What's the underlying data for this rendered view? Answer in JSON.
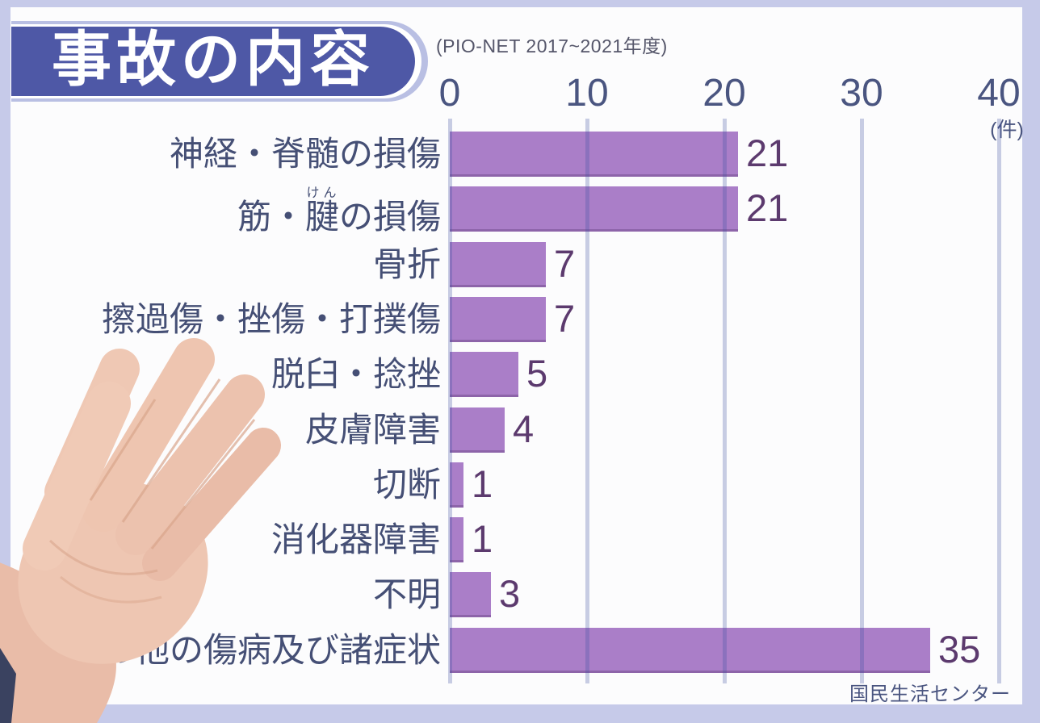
{
  "header": {
    "title": "事故の内容",
    "note": "(PIO-NET 2017~2021年度)"
  },
  "footer": {
    "source": "国民生活センター"
  },
  "axis": {
    "unit_label": "(件)"
  },
  "colors": {
    "frame": "#c6cae9",
    "card": "#fcfcfd",
    "title_bg": "#4e58a6",
    "title_ring": "#b9bfe3",
    "bar": "#aa7ec8",
    "bar_edge": "#8d64a9",
    "value_text": "#5c3a6e",
    "label_text": "#454f75",
    "axis_text": "#4a5580"
  },
  "chart_data": {
    "type": "bar",
    "orientation": "horizontal",
    "title": "事故の内容",
    "note": "(PIO-NET 2017~2021年度)",
    "source": "国民生活センター",
    "unit": "件",
    "x_ticks": [
      0,
      10,
      20,
      30,
      40
    ],
    "xlim": [
      0,
      41.6
    ],
    "grid": true,
    "legend": "none",
    "categories": [
      "神経・脊髄の損傷",
      "筋・腱の損傷",
      "骨折",
      "擦過傷・挫傷・打撲傷",
      "脱臼・捻挫",
      "皮膚障害",
      "切断",
      "消化器障害",
      "不明",
      "その他の傷病及び諸症状"
    ],
    "values": [
      21,
      21,
      7,
      7,
      5,
      4,
      1,
      1,
      3,
      35
    ],
    "furigana": {
      "row_index": 1,
      "before": "筋・",
      "base": "腱",
      "rt": "けん",
      "after": "の損傷"
    }
  }
}
